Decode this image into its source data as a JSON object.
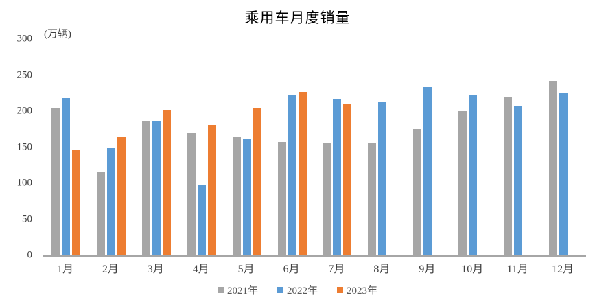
{
  "title": "乘用车月度销量",
  "chart_data": {
    "type": "bar",
    "title": "乘用车月度销量",
    "ylabel": "(万辆)",
    "xlabel": "",
    "ylim": [
      0,
      300
    ],
    "yticks": [
      0,
      50,
      100,
      150,
      200,
      250,
      300
    ],
    "grid": false,
    "legend_position": "bottom",
    "categories": [
      "1月",
      "2月",
      "3月",
      "4月",
      "5月",
      "6月",
      "7月",
      "8月",
      "9月",
      "10月",
      "11月",
      "12月"
    ],
    "series": [
      {
        "name": "2021年",
        "color": "#A6A6A6",
        "values": [
          205,
          116,
          187,
          170,
          165,
          157,
          155,
          155,
          175,
          200,
          219,
          242
        ]
      },
      {
        "name": "2022年",
        "color": "#5B9BD5",
        "values": [
          218,
          149,
          186,
          97,
          162,
          222,
          217,
          213,
          233,
          223,
          208,
          226
        ]
      },
      {
        "name": "2023年",
        "color": "#ED7D31",
        "values": [
          147,
          165,
          202,
          181,
          205,
          227,
          210,
          null,
          null,
          null,
          null,
          null
        ]
      }
    ]
  }
}
